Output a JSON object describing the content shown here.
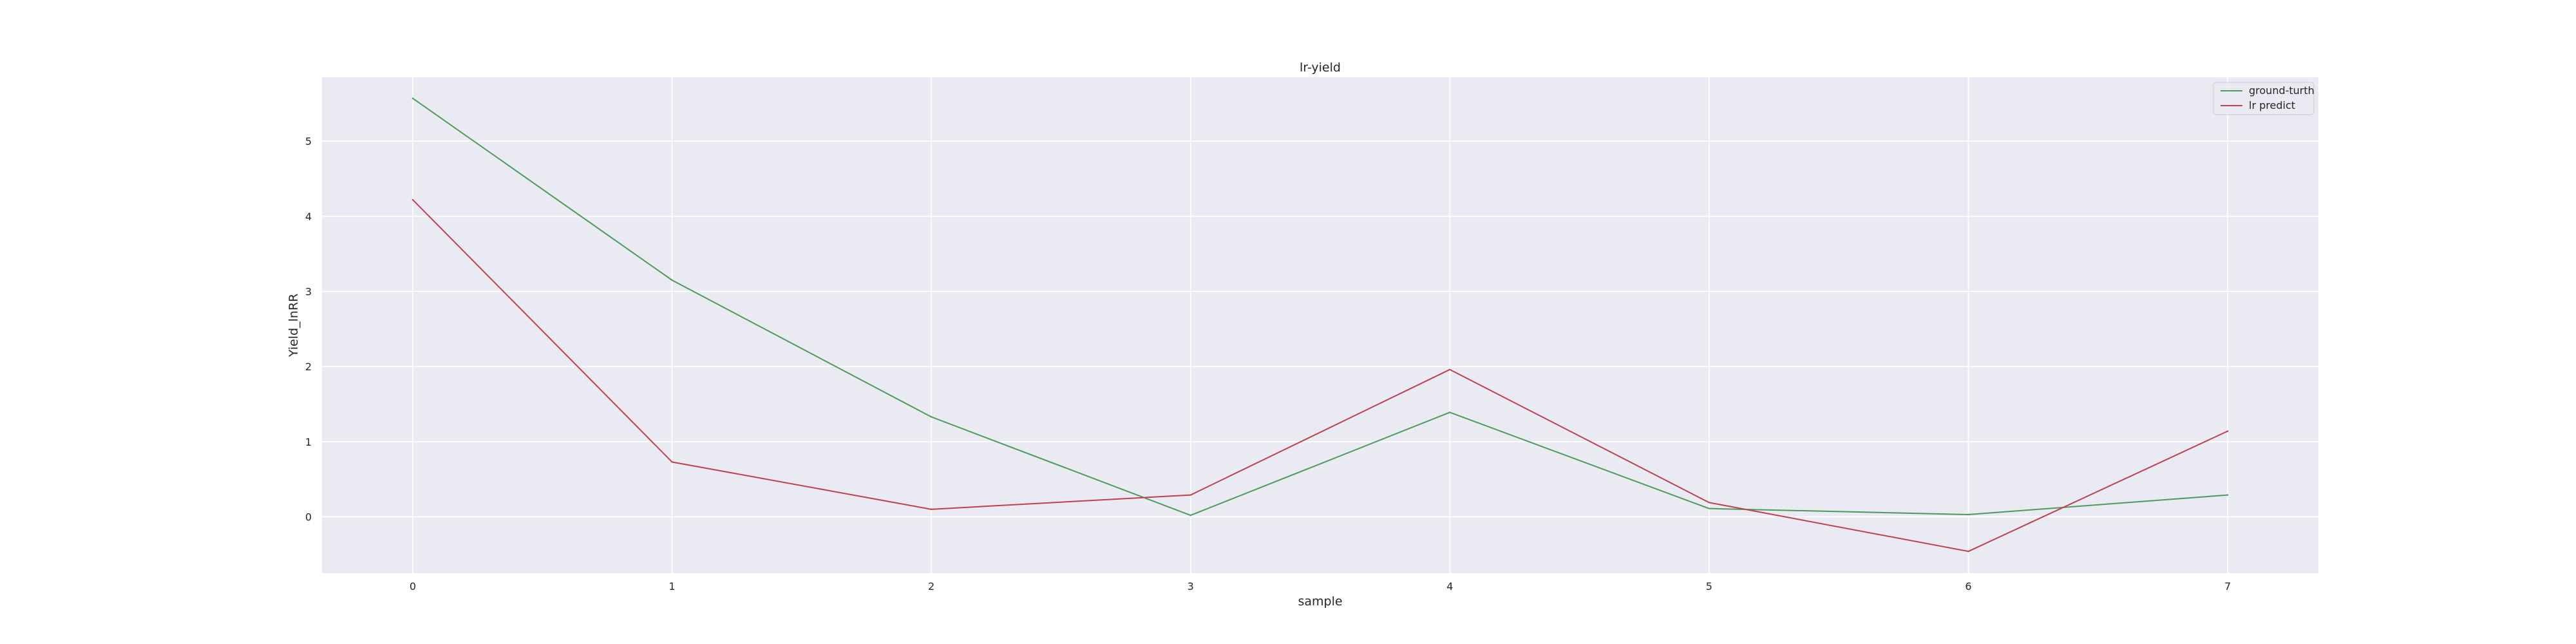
{
  "chart_data": {
    "type": "line",
    "title": "lr-yield",
    "xlabel": "sample",
    "ylabel": "Yield_lnRR",
    "x": [
      0,
      1,
      2,
      3,
      4,
      5,
      6,
      7
    ],
    "xlim": [
      -0.35,
      7.35
    ],
    "ylim": [
      -0.75,
      5.85
    ],
    "xticks": [
      0,
      1,
      2,
      3,
      4,
      5,
      6,
      7
    ],
    "yticks": [
      0,
      1,
      2,
      3,
      4,
      5
    ],
    "grid": true,
    "legend_position": "top-right",
    "series": [
      {
        "name": "ground-turth",
        "color": "#4c9a5c",
        "values": [
          5.57,
          3.15,
          1.33,
          0.02,
          1.39,
          0.11,
          0.03,
          0.29
        ]
      },
      {
        "name": "lr predict",
        "color": "#c0404f",
        "values": [
          4.22,
          0.73,
          0.1,
          0.29,
          1.96,
          0.19,
          -0.46,
          1.14
        ]
      }
    ],
    "colors": {
      "plot_background": "#eaeaf2",
      "grid": "#ffffff"
    }
  }
}
